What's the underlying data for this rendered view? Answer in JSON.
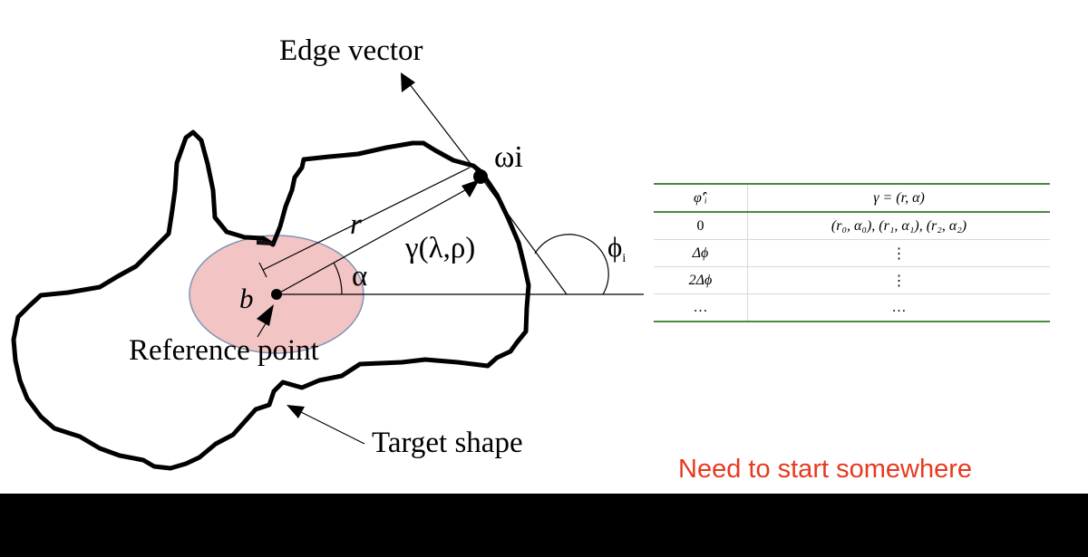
{
  "labels": {
    "edge_vector": "Edge vector",
    "omega_i": "ωi",
    "r": "r",
    "gamma": "γ(λ,ρ)",
    "alpha": "α",
    "phi_i": "ϕ",
    "phi_i_sub": "i",
    "b": "b",
    "reference_point": "Reference point",
    "target_shape": "Target shape"
  },
  "table": {
    "headers": [
      "φ̂′ᵢ",
      "γ = (r, α)"
    ],
    "rows": [
      [
        "0",
        "(r₀, α₀), (r₁, α₁), (r₂, α₂)"
      ],
      [
        "Δϕ",
        "⋮"
      ],
      [
        "2Δϕ",
        "⋮"
      ],
      [
        "…",
        "…"
      ]
    ]
  },
  "caption": "Need to start somewhere",
  "colors": {
    "caption": "#e8391f",
    "ellipse_fill": "#f2c4c4",
    "ellipse_stroke": "#7f93b5",
    "table_rule": "#4a8a3a"
  }
}
